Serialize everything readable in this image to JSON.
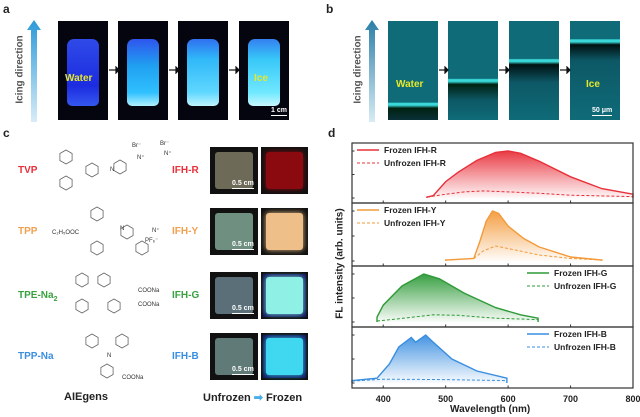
{
  "panel_a": {
    "label": "a",
    "axis_label": "Icing direction",
    "water_label": "Water",
    "ice_label": "Ice",
    "scale_bar": "1 cm"
  },
  "panel_b": {
    "label": "b",
    "axis_label": "Icing direction",
    "water_label": "Water",
    "ice_label": "Ice",
    "scale_bar": "50 μm"
  },
  "panel_c": {
    "label": "c",
    "rows": [
      {
        "aiegen": "TVP",
        "hydrogel": "IFH-R",
        "color": "#e8303a",
        "scale_bar": "0.5 cm",
        "atoms": [
          "Br⁻",
          "N⁺",
          "Br⁻",
          "N⁺",
          "N"
        ],
        "unfrozen": "#6e6a58",
        "frozen": "#8a0a10"
      },
      {
        "aiegen": "TPP",
        "hydrogel": "IFH-Y",
        "color": "#f0a050",
        "scale_bar": "0.5 cm",
        "atoms": [
          "C₂H₅OOC",
          "N",
          "PF₆⁻",
          "N⁺"
        ],
        "unfrozen": "#6f8f80",
        "frozen": "#eebf88"
      },
      {
        "aiegen": "TPE-Na",
        "aiegen_sub": "2",
        "hydrogel": "IFH-G",
        "color": "#3aa040",
        "scale_bar": "0.5 cm",
        "atoms": [
          "COONa",
          "COONa"
        ],
        "unfrozen": "#5a6f78",
        "frozen": "#8ff0e6"
      },
      {
        "aiegen": "TPP-Na",
        "hydrogel": "IFH-B",
        "color": "#3a8ee0",
        "scale_bar": "0.5 cm",
        "atoms": [
          "N",
          "COONa"
        ],
        "unfrozen": "#607a78",
        "frozen": "#40d8f0"
      }
    ],
    "footer_left": "AIEgens",
    "footer_unfrozen": "Unfrozen",
    "footer_frozen": "Frozen"
  },
  "chart_data": {
    "label": "d",
    "type": "area",
    "xlabel": "Wavelength (nm)",
    "ylabel": "FL intensity (arb. units)",
    "xlim": [
      350,
      800
    ],
    "xticks": [
      400,
      500,
      600,
      700,
      800
    ],
    "grid": false,
    "panels": [
      {
        "color": "#e8303a",
        "legend": "top-left",
        "series": [
          {
            "name": "Frozen IFH-R",
            "style": "solid",
            "x": [
              470,
              480,
              500,
              520,
              550,
              580,
              600,
              620,
              650,
              700,
              750,
              800
            ],
            "y": [
              0.02,
              0.05,
              0.35,
              0.55,
              0.8,
              0.97,
              1.0,
              0.95,
              0.78,
              0.45,
              0.2,
              0.08
            ]
          },
          {
            "name": "Unfrozen IFH-R",
            "style": "dashed",
            "x": [
              470,
              500,
              530,
              560,
              600,
              650,
              700,
              800
            ],
            "y": [
              0.02,
              0.08,
              0.13,
              0.15,
              0.13,
              0.1,
              0.06,
              0.03
            ]
          }
        ]
      },
      {
        "color": "#f39a3a",
        "legend": "top-left",
        "series": [
          {
            "name": "Frozen IFH-Y",
            "style": "solid",
            "x": [
              500,
              545,
              555,
              565,
              575,
              585,
              600,
              625,
              650,
              700,
              750
            ],
            "y": [
              0.02,
              0.05,
              0.4,
              0.8,
              1.0,
              0.95,
              0.7,
              0.45,
              0.28,
              0.08,
              0.02
            ]
          },
          {
            "name": "Unfrozen IFH-Y",
            "style": "dashed",
            "x": [
              545,
              560,
              580,
              600,
              650,
              700,
              750
            ],
            "y": [
              0.05,
              0.2,
              0.3,
              0.25,
              0.12,
              0.05,
              0.02
            ]
          }
        ]
      },
      {
        "color": "#2e9a38",
        "legend": "top-right",
        "series": [
          {
            "name": "Frozen IFH-G",
            "style": "solid",
            "x": [
              390,
              400,
              430,
              465,
              490,
              530,
              580,
              620,
              648
            ],
            "y": [
              0.1,
              0.35,
              0.75,
              1.0,
              0.9,
              0.6,
              0.3,
              0.15,
              0.08
            ]
          },
          {
            "name": "Unfrozen IFH-G",
            "style": "dashed",
            "x": [
              390,
              420,
              480,
              520,
              580,
              648
            ],
            "y": [
              0.02,
              0.06,
              0.15,
              0.14,
              0.08,
              0.05
            ]
          }
        ]
      },
      {
        "color": "#3a8ee0",
        "legend": "top-right",
        "series": [
          {
            "name": "Frozen IFH-B",
            "style": "solid",
            "x": [
              350,
              390,
              410,
              425,
              445,
              452,
              468,
              480,
              510,
              550,
              598
            ],
            "y": [
              0.05,
              0.1,
              0.4,
              0.75,
              0.95,
              0.85,
              1.0,
              0.85,
              0.5,
              0.25,
              0.1
            ]
          },
          {
            "name": "Unfrozen IFH-B",
            "style": "dashed",
            "x": [
              350,
              400,
              500,
              598
            ],
            "y": [
              0.04,
              0.08,
              0.07,
              0.05
            ]
          }
        ]
      }
    ]
  }
}
